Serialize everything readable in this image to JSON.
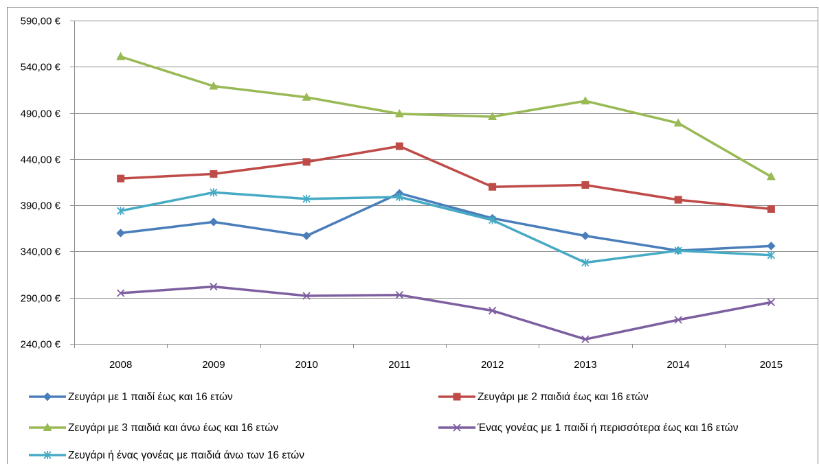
{
  "chart_data": {
    "type": "line",
    "x": [
      "2008",
      "2009",
      "2010",
      "2011",
      "2012",
      "2013",
      "2014",
      "2015"
    ],
    "yticks": [
      "240,00 €",
      "290,00 €",
      "340,00 €",
      "390,00 €",
      "440,00 €",
      "490,00 €",
      "540,00 €",
      "590,00 €"
    ],
    "ylim": [
      240,
      590
    ],
    "grid": true,
    "legend_position": "bottom",
    "series": [
      {
        "name": "Ζευγάρι με 1 παιδί έως και 16 ετών",
        "color": "#4a7ebb",
        "marker": "diamond",
        "values": [
          360,
          372,
          357,
          403,
          376,
          357,
          341,
          346
        ]
      },
      {
        "name": "Ζευγάρι με 2 παιδιά έως και 16 ετών",
        "color": "#be4b48",
        "marker": "square",
        "values": [
          419,
          424,
          437,
          454,
          410,
          412,
          396,
          386
        ]
      },
      {
        "name": "Ζευγάρι με 3 παιδιά και άνω έως και 16 ετών",
        "color": "#98b954",
        "marker": "triangle",
        "values": [
          551,
          519,
          507,
          489,
          486,
          503,
          479,
          421
        ]
      },
      {
        "name": "Ένας γονέας με 1 παιδί ή περισσότερα έως και 16 ετών",
        "color": "#7d5fa0",
        "marker": "x",
        "values": [
          295,
          302,
          292,
          293,
          276,
          245,
          266,
          285
        ]
      },
      {
        "name": "Ζευγάρι ή ένας γονέας με παιδιά άνω των 16 ετών",
        "color": "#46aac5",
        "marker": "star",
        "values": [
          384,
          404,
          397,
          399,
          374,
          328,
          341,
          336
        ]
      }
    ]
  }
}
